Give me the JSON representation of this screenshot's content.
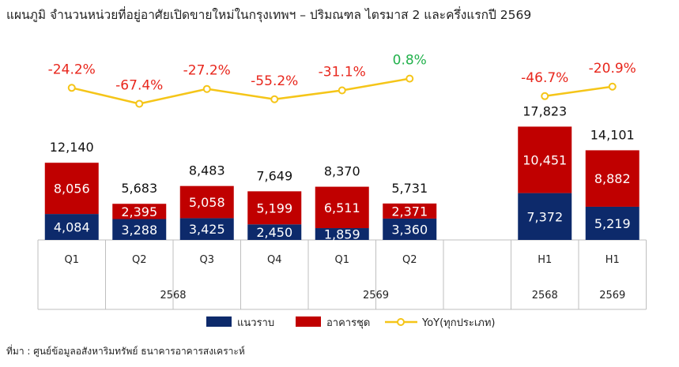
{
  "title": "แผนภูมิ จำนวนหน่วยที่อยู่อาศัยเปิดขายใหม่ในกรุงเทพฯ – ปริมณฑล ไตรมาส 2 และครึ่งแรกปี 2569",
  "source": "ที่มา : ศูนย์ข้อมูลอสังหาริมทรัพย์ ธนาคารอาคารสงเคราะห์",
  "colors": {
    "lowrise": "#0d2a6b",
    "condo": "#c00000",
    "yoy_line": "#f5c518",
    "yoy_negative": "#e8261c",
    "yoy_positive": "#22b14c",
    "grid": "#bfbfbf"
  },
  "chart_data": {
    "type": "bar",
    "stacked": true,
    "categories": [
      "Q1",
      "Q2",
      "Q3",
      "Q4",
      "Q1",
      "Q2",
      "H1",
      "H1"
    ],
    "groups": [
      {
        "label": "2568",
        "count": 4
      },
      {
        "label": "2569",
        "count": 2
      },
      {
        "label": "2568",
        "count": 1
      },
      {
        "label": "2569",
        "count": 1
      }
    ],
    "gap_after_index": 5,
    "series": [
      {
        "name": "แนวราบ",
        "values": [
          4084,
          3288,
          3425,
          2450,
          1859,
          3360,
          7372,
          5219
        ]
      },
      {
        "name": "อาคารชุด",
        "values": [
          8056,
          2395,
          5058,
          5199,
          6511,
          2371,
          10451,
          8882
        ]
      }
    ],
    "totals": [
      12140,
      5683,
      8483,
      7649,
      8370,
      5731,
      17823,
      14101
    ],
    "value_labels": {
      "lowrise": [
        "4,084",
        "3,288",
        "3,425",
        "2,450",
        "1,859",
        "3,360",
        "7,372",
        "5,219"
      ],
      "condo": [
        "8,056",
        "2,395",
        "5,058",
        "5,199",
        "6,511",
        "2,371",
        "10,451",
        "8,882"
      ],
      "totals": [
        "12,140",
        "5,683",
        "8,483",
        "7,649",
        "8,370",
        "5,731",
        "17,823",
        "14,101"
      ]
    },
    "yoy": {
      "name": "YoY(ทุกประเภท)",
      "quarterly": [
        -24.2,
        -67.4,
        -27.2,
        -55.2,
        -31.1,
        0.8
      ],
      "half": [
        -46.7,
        -20.9
      ],
      "labels": [
        "-24.2%",
        "-67.4%",
        "-27.2%",
        "-55.2%",
        "-31.1%",
        "0.8%",
        "-46.7%",
        "-20.9%"
      ]
    },
    "legend_position": "bottom"
  }
}
